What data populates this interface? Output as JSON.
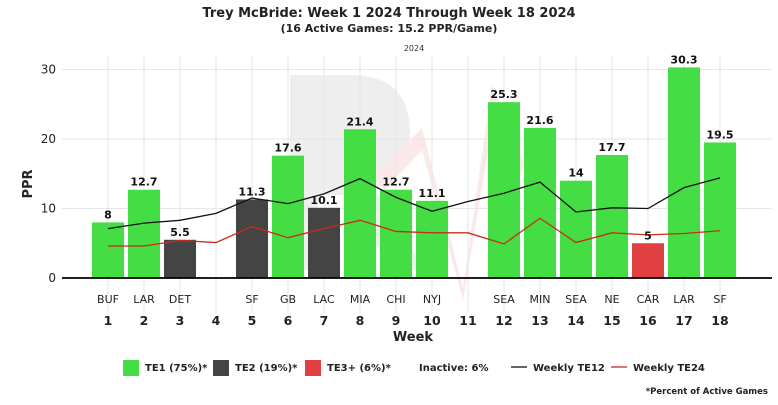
{
  "header": {
    "title": "Trey McBride: Week 1 2024 Through Week 18 2024",
    "subtitle": "(16 Active Games: 15.2 PPR/Game)",
    "season": "2024"
  },
  "chart_data": {
    "type": "bar",
    "xlabel": "Week",
    "ylabel": "PPR",
    "ylim": [
      -1,
      33
    ],
    "yticks": [
      0,
      10,
      20,
      30
    ],
    "grid": true,
    "legend_position": "bottom",
    "weeks": [
      1,
      2,
      3,
      4,
      5,
      6,
      7,
      8,
      9,
      10,
      11,
      12,
      13,
      14,
      15,
      16,
      17,
      18
    ],
    "opponents": [
      "BUF",
      "LAR",
      "DET",
      "",
      "SF",
      "GB",
      "LAC",
      "MIA",
      "CHI",
      "NYJ",
      "",
      "SEA",
      "MIN",
      "SEA",
      "NE",
      "CAR",
      "LAR",
      "SF"
    ],
    "values": [
      8,
      12.7,
      5.5,
      null,
      11.3,
      17.6,
      10.1,
      21.4,
      12.7,
      11.1,
      null,
      25.3,
      21.6,
      14,
      17.7,
      5,
      30.3,
      19.5
    ],
    "tiers": [
      "TE1",
      "TE1",
      "TE2",
      null,
      "TE2",
      "TE1",
      "TE2",
      "TE1",
      "TE1",
      "TE1",
      null,
      "TE1",
      "TE1",
      "TE1",
      "TE1",
      "TE3+",
      "TE1",
      "TE1"
    ],
    "series": [
      {
        "name": "Weekly TE12",
        "values": [
          7.1,
          7.9,
          8.3,
          9.3,
          11.5,
          10.7,
          12.1,
          14.3,
          11.6,
          9.6,
          11.0,
          12.2,
          13.8,
          9.5,
          10.1,
          10.0,
          13.0,
          14.4
        ]
      },
      {
        "name": "Weekly TE24",
        "values": [
          4.6,
          4.6,
          5.4,
          5.1,
          7.4,
          5.8,
          7.1,
          8.3,
          6.7,
          6.5,
          6.5,
          4.9,
          8.6,
          5.1,
          6.5,
          6.2,
          6.4,
          6.8
        ]
      }
    ]
  },
  "legend": {
    "items": [
      {
        "label": "TE1 (75%)*",
        "color": "#44dd44"
      },
      {
        "label": "TE2 (19%)*",
        "color": "#444444"
      },
      {
        "label": "TE3+ (6%)*",
        "color": "#e04040"
      }
    ],
    "inactive": "Inactive: 6%",
    "lines": [
      {
        "label": "Weekly TE12",
        "color": "#111111"
      },
      {
        "label": "Weekly TE24",
        "color": "#cc2a1a"
      }
    ]
  },
  "footnote": "*Percent of Active Games",
  "colors": {
    "TE1": "#44dd44",
    "TE2": "#444444",
    "TE3+": "#e04040",
    "TE12": "#111111",
    "TE24": "#cc2a1a",
    "grid": "#e6e6e6"
  }
}
